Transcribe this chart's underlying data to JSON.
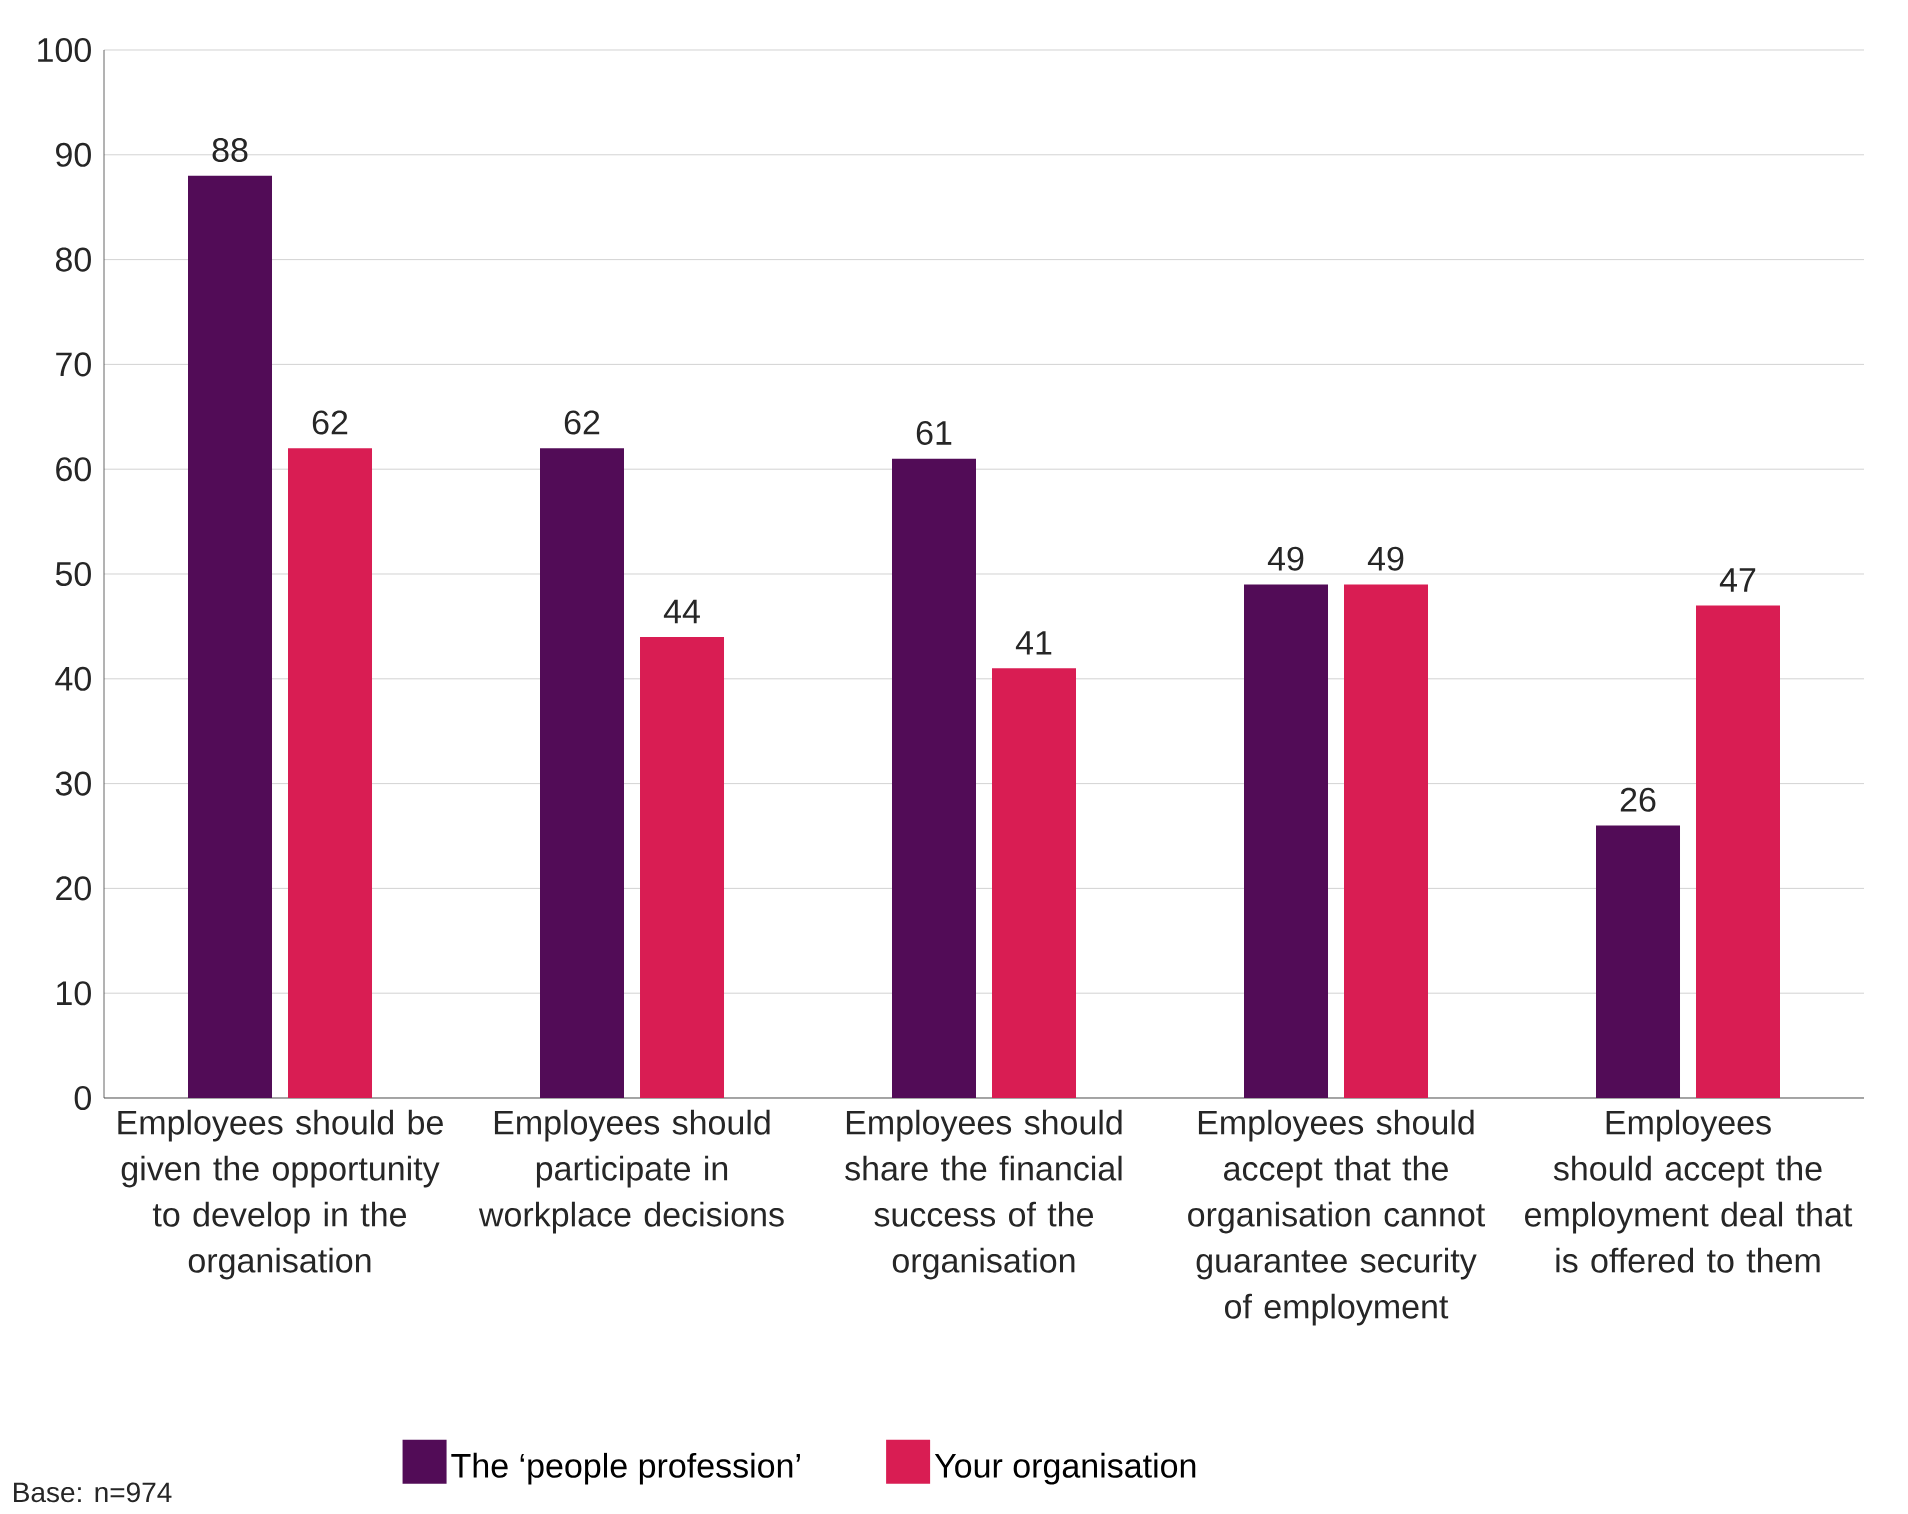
{
  "chart_data": {
    "type": "bar",
    "categories": [
      "Employees should be given the opportunity to develop in the organisation",
      "Employees should participate in workplace decisions",
      "Employees should share the financial success of the organisation",
      "Employees should accept that the organisation cannot guarantee security of employment",
      "Employees should accept the employment deal that is offered to them"
    ],
    "series": [
      {
        "name": "The ‘people profession’",
        "color": "#520c57",
        "values": [
          88,
          62,
          61,
          49,
          26
        ]
      },
      {
        "name": "Your organisation",
        "color": "#d91d53",
        "values": [
          62,
          44,
          41,
          49,
          47
        ]
      }
    ],
    "ylim": [
      0,
      100
    ],
    "yticks": [
      0,
      10,
      20,
      30,
      40,
      50,
      60,
      70,
      80,
      90,
      100
    ],
    "grid": "y",
    "data_labels": true,
    "legend": "bottom",
    "annotations": [
      "Base: n=974"
    ]
  }
}
